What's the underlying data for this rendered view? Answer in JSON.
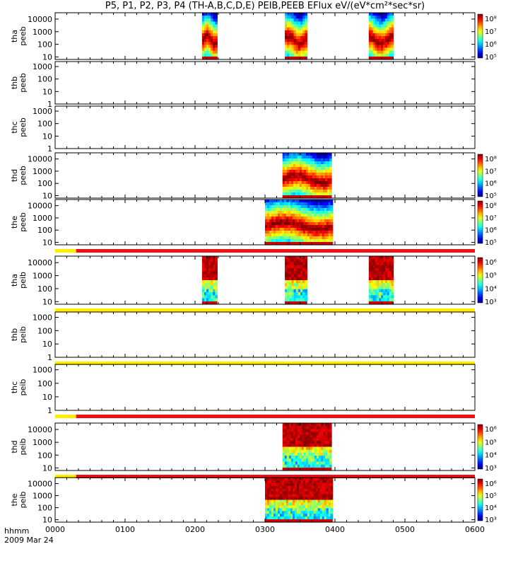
{
  "title": "P5, P1, P2, P3, P4 (TH-A,B,C,D,E) PEIB,PEEB EFlux eV/(eV*cm²*sec*sr)",
  "footer": {
    "hhmm": "hhmm",
    "date": "2009 Mar 24"
  },
  "chart_data": {
    "type": "heatmap",
    "x_label": "hhmm",
    "x_ticks": [
      "0000",
      "0100",
      "0200",
      "0300",
      "0400",
      "0500",
      "0600"
    ],
    "x_range_minutes": [
      0,
      360
    ],
    "panels": [
      {
        "name": "tha peeb",
        "label_top": "tha",
        "label_bottom": "peeb",
        "yticks": [
          "10000",
          "1000",
          "100",
          "10"
        ],
        "y_min_log": 0.8,
        "y_max_log": 4.5,
        "intervals": [
          [
            126,
            139
          ],
          [
            197,
            216
          ],
          [
            269,
            290
          ]
        ],
        "colorbar": {
          "labels": [
            "10⁸",
            "10⁷",
            "10⁶",
            "10⁵"
          ]
        },
        "mode_bar": null
      },
      {
        "name": "thb peeb",
        "label_top": "thb",
        "label_bottom": "peeb",
        "yticks": [
          "1000",
          "100",
          "10",
          "1"
        ],
        "y_min_log": 0,
        "y_max_log": 3.4,
        "intervals": [],
        "colorbar": null,
        "mode_bar": null
      },
      {
        "name": "thc peeb",
        "label_top": "thc",
        "label_bottom": "peeb",
        "yticks": [
          "1000",
          "100",
          "10",
          "1"
        ],
        "y_min_log": 0,
        "y_max_log": 3.4,
        "intervals": [],
        "colorbar": null,
        "mode_bar": null
      },
      {
        "name": "thd peeb",
        "label_top": "thd",
        "label_bottom": "peeb",
        "yticks": [
          "10000",
          "1000",
          "100",
          "10"
        ],
        "y_min_log": 0.8,
        "y_max_log": 4.5,
        "intervals": [
          [
            195,
            237
          ]
        ],
        "colorbar": {
          "labels": [
            "10⁸",
            "10⁷",
            "10⁶",
            "10⁵"
          ]
        },
        "mode_bar": null
      },
      {
        "name": "the peeb",
        "label_top": "the",
        "label_bottom": "peeb",
        "yticks": [
          "10000",
          "1000",
          "100",
          "10"
        ],
        "y_min_log": 0.8,
        "y_max_log": 4.5,
        "intervals": [
          [
            180,
            238
          ]
        ],
        "colorbar": {
          "labels": [
            "10⁸",
            "10⁷",
            "10⁶",
            "10⁵"
          ]
        },
        "mode_bar": {
          "yellow_until": 18
        }
      },
      {
        "name": "tha peib",
        "label_top": "tha",
        "label_bottom": "peib",
        "yticks": [
          "10000",
          "1000",
          "100",
          "10"
        ],
        "y_min_log": 0.8,
        "y_max_log": 4.5,
        "intervals": [
          [
            126,
            139
          ],
          [
            197,
            216
          ],
          [
            269,
            290
          ]
        ],
        "colorbar": {
          "labels": [
            "10⁶",
            "10⁵",
            "10⁴",
            "10³"
          ]
        },
        "mode_bar": {
          "yellow_until": 360
        }
      },
      {
        "name": "thb peib",
        "label_top": "thb",
        "label_bottom": "peib",
        "yticks": [
          "1000",
          "100",
          "10",
          "1"
        ],
        "y_min_log": 0,
        "y_max_log": 3.4,
        "intervals": [],
        "colorbar": null,
        "mode_bar": {
          "yellow_until": 360
        }
      },
      {
        "name": "thc peib",
        "label_top": "thc",
        "label_bottom": "peib",
        "yticks": [
          "1000",
          "100",
          "10",
          "1"
        ],
        "y_min_log": 0,
        "y_max_log": 3.4,
        "intervals": [],
        "colorbar": null,
        "mode_bar": {
          "yellow_until": 18
        }
      },
      {
        "name": "thd peib",
        "label_top": "thd",
        "label_bottom": "peib",
        "yticks": [
          "10000",
          "1000",
          "100",
          "10"
        ],
        "y_min_log": 0.8,
        "y_max_log": 4.5,
        "intervals": [
          [
            195,
            237
          ]
        ],
        "colorbar": {
          "labels": [
            "10⁶",
            "10⁵",
            "10⁴",
            "10³"
          ]
        },
        "mode_bar": {
          "yellow_until": 18
        }
      },
      {
        "name": "the peib",
        "label_top": "the",
        "label_bottom": "peib",
        "yticks": [
          "10000",
          "1000",
          "100",
          "10"
        ],
        "y_min_log": 0.8,
        "y_max_log": 4.5,
        "intervals": [
          [
            180,
            238
          ]
        ],
        "colorbar": {
          "labels": [
            "10⁶",
            "10⁵",
            "10⁴",
            "10³"
          ]
        },
        "mode_bar": null
      }
    ]
  }
}
